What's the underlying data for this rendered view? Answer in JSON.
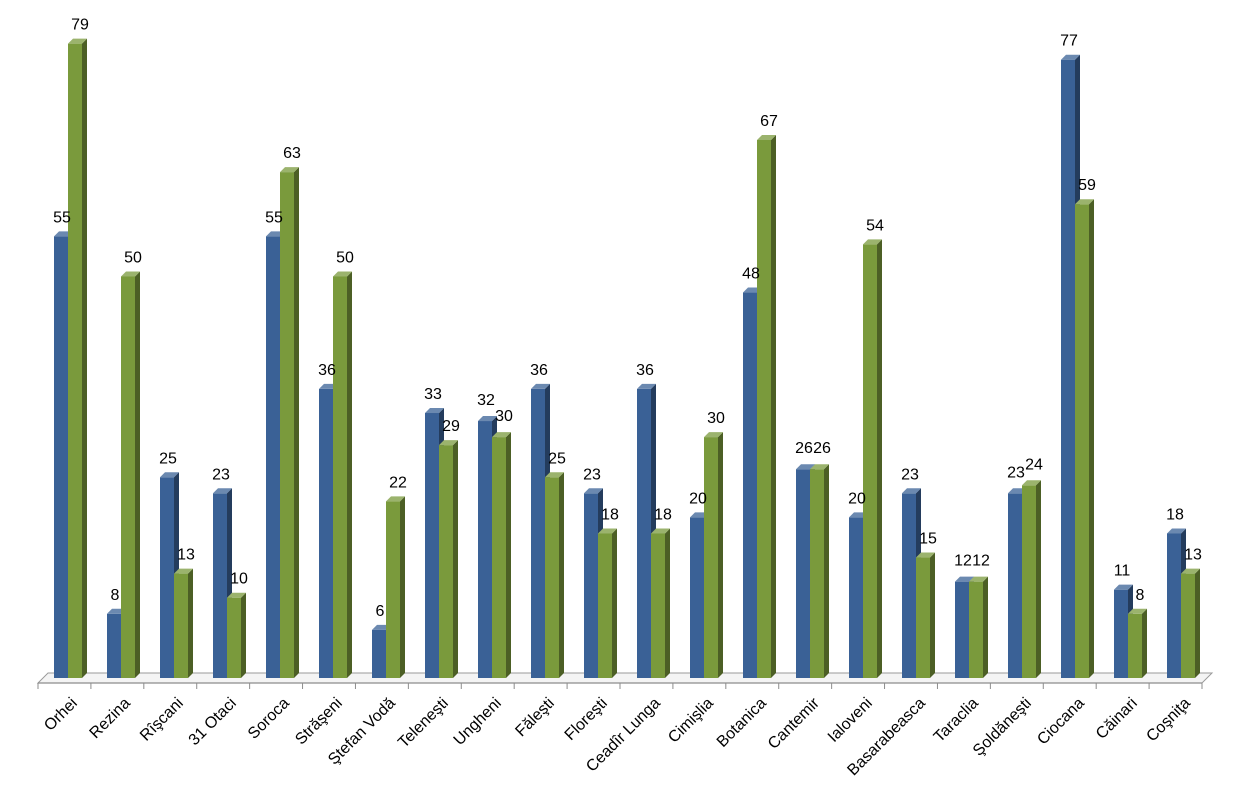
{
  "chart_data": {
    "type": "bar",
    "style": "3d-clustered-column",
    "categories": [
      "Orhei",
      "Rezina",
      "Rîşcani",
      "31 Otaci",
      "Soroca",
      "Străşeni",
      "Ştefan Vodă",
      "Teleneşti",
      "Ungheni",
      "Făleşti",
      "Floreşti",
      "Ceadîr Lunga",
      "Cimişlia",
      "Botanica",
      "Cantemir",
      "Ialoveni",
      "Basarabeasca",
      "Taraclia",
      "Şoldăneşti",
      "Ciocana",
      "Căinari",
      "Coşniţa"
    ],
    "series": [
      {
        "values": [
          55,
          8,
          25,
          23,
          55,
          36,
          6,
          33,
          32,
          36,
          23,
          36,
          20,
          48,
          26,
          20,
          23,
          12,
          23,
          77,
          11,
          18
        ],
        "color": "#3A6196"
      },
      {
        "values": [
          79,
          50,
          13,
          10,
          63,
          50,
          22,
          29,
          30,
          25,
          18,
          18,
          30,
          67,
          26,
          54,
          15,
          12,
          24,
          59,
          8,
          13
        ],
        "color": "#7A9A3C"
      }
    ],
    "ylim": [
      0,
      80
    ],
    "grid": false,
    "legend": "none",
    "data_labels": true
  }
}
